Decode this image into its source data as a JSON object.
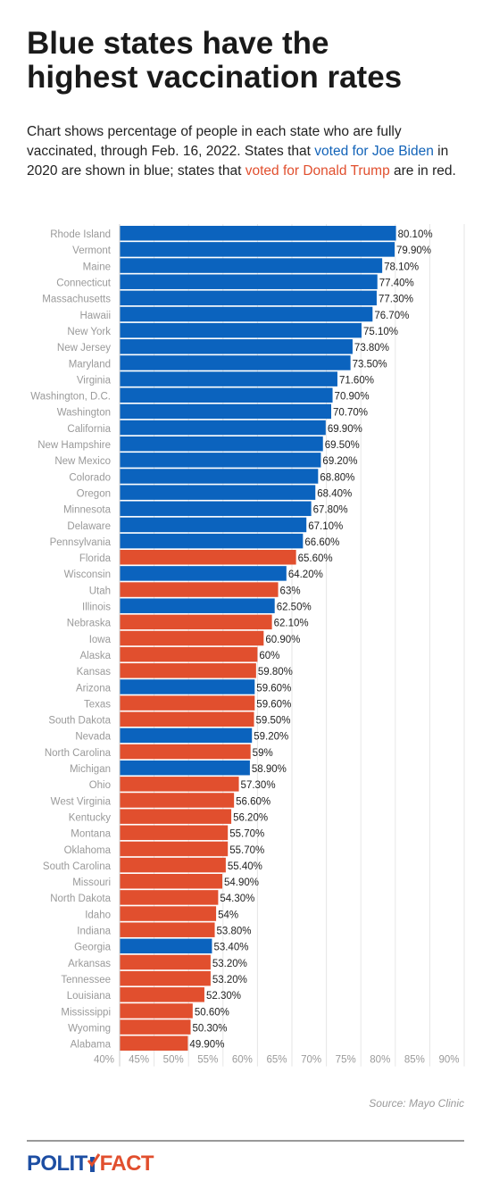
{
  "title_line1": "Blue states have the",
  "title_line2": "highest vaccination rates",
  "description": {
    "part1": "Chart shows percentage of people in each state who are fully vaccinated, through Feb. 16, 2022. States that ",
    "biden_link": "voted for Joe Biden",
    "part2": " in 2020 are shown in blue; states that ",
    "trump_link": "voted for Donald Trump",
    "part3": " are in red."
  },
  "source": "Source: Mayo Clinic",
  "logo": {
    "left": "POLIT",
    "right": "FACT"
  },
  "colors": {
    "biden": "#0b63be",
    "trump": "#e14f2e",
    "grid": "#e6e6e6",
    "label": "#9a9a9a"
  },
  "chart_data": {
    "type": "bar",
    "orientation": "horizontal",
    "xlim": [
      40,
      90
    ],
    "x_ticks": [
      "40%",
      "45%",
      "50%",
      "55%",
      "60%",
      "65%",
      "70%",
      "75%",
      "80%",
      "85%",
      "90%"
    ],
    "grid": true,
    "categories": [
      "Rhode Island",
      "Vermont",
      "Maine",
      "Connecticut",
      "Massachusetts",
      "Hawaii",
      "New York",
      "New Jersey",
      "Maryland",
      "Virginia",
      "Washington, D.C.",
      "Washington",
      "California",
      "New Hampshire",
      "New Mexico",
      "Colorado",
      "Oregon",
      "Minnesota",
      "Delaware",
      "Pennsylvania",
      "Florida",
      "Wisconsin",
      "Utah",
      "Illinois",
      "Nebraska",
      "Iowa",
      "Alaska",
      "Kansas",
      "Arizona",
      "Texas",
      "South Dakota",
      "Nevada",
      "North Carolina",
      "Michigan",
      "Ohio",
      "West Virginia",
      "Kentucky",
      "Montana",
      "Oklahoma",
      "South Carolina",
      "Missouri",
      "North Dakota",
      "Idaho",
      "Indiana",
      "Georgia",
      "Arkansas",
      "Tennessee",
      "Louisiana",
      "Mississippi",
      "Wyoming",
      "Alabama"
    ],
    "values": [
      80.1,
      79.9,
      78.1,
      77.4,
      77.3,
      76.7,
      75.1,
      73.8,
      73.5,
      71.6,
      70.9,
      70.7,
      69.9,
      69.5,
      69.2,
      68.8,
      68.4,
      67.8,
      67.1,
      66.6,
      65.6,
      64.2,
      63,
      62.5,
      62.1,
      60.9,
      60,
      59.8,
      59.6,
      59.6,
      59.5,
      59.2,
      59,
      58.9,
      57.3,
      56.6,
      56.2,
      55.7,
      55.7,
      55.4,
      54.9,
      54.3,
      54,
      53.8,
      53.4,
      53.2,
      53.2,
      52.3,
      50.6,
      50.3,
      49.9
    ],
    "value_labels": [
      "80.10%",
      "79.90%",
      "78.10%",
      "77.40%",
      "77.30%",
      "76.70%",
      "75.10%",
      "73.80%",
      "73.50%",
      "71.60%",
      "70.90%",
      "70.70%",
      "69.90%",
      "69.50%",
      "69.20%",
      "68.80%",
      "68.40%",
      "67.80%",
      "67.10%",
      "66.60%",
      "65.60%",
      "64.20%",
      "63%",
      "62.50%",
      "62.10%",
      "60.90%",
      "60%",
      "59.80%",
      "59.60%",
      "59.60%",
      "59.50%",
      "59.20%",
      "59%",
      "58.90%",
      "57.30%",
      "56.60%",
      "56.20%",
      "55.70%",
      "55.70%",
      "55.40%",
      "54.90%",
      "54.30%",
      "54%",
      "53.80%",
      "53.40%",
      "53.20%",
      "53.20%",
      "52.30%",
      "50.60%",
      "50.30%",
      "49.90%"
    ],
    "party": [
      "B",
      "B",
      "B",
      "B",
      "B",
      "B",
      "B",
      "B",
      "B",
      "B",
      "B",
      "B",
      "B",
      "B",
      "B",
      "B",
      "B",
      "B",
      "B",
      "B",
      "R",
      "B",
      "R",
      "B",
      "R",
      "R",
      "R",
      "R",
      "B",
      "R",
      "R",
      "B",
      "R",
      "B",
      "R",
      "R",
      "R",
      "R",
      "R",
      "R",
      "R",
      "R",
      "R",
      "R",
      "B",
      "R",
      "R",
      "R",
      "R",
      "R",
      "R"
    ]
  }
}
